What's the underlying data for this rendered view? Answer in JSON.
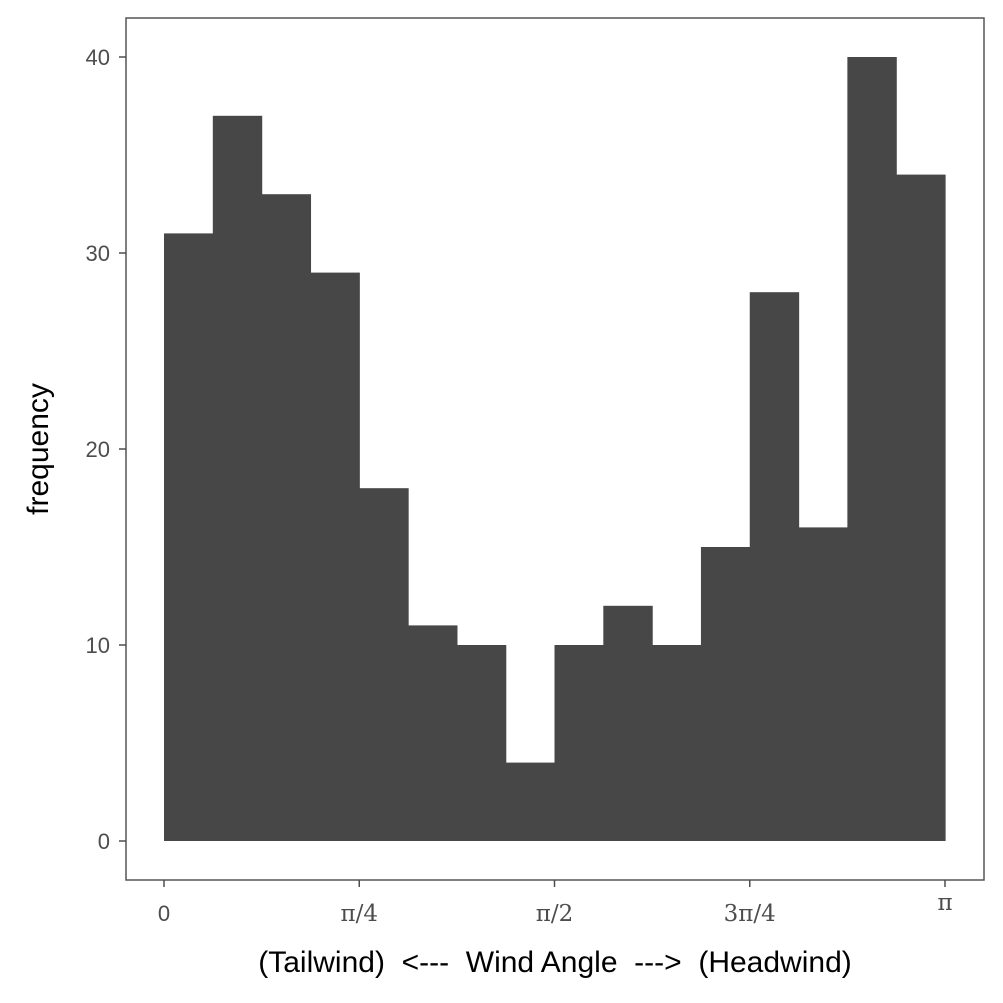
{
  "chart_data": {
    "type": "bar",
    "subtype": "histogram",
    "xlabel": "(Tailwind)  <---  Wind Angle  --->  (Headwind)",
    "ylabel": "frequency",
    "x_range": [
      0,
      3.14159
    ],
    "ylim": [
      0,
      42
    ],
    "bins": 16,
    "bin_edges": [
      0,
      0.19635,
      0.3927,
      0.58905,
      0.7854,
      0.98175,
      1.1781,
      1.37445,
      1.5708,
      1.76715,
      1.9635,
      2.15985,
      2.35619,
      2.55254,
      2.74889,
      2.94524,
      3.14159
    ],
    "values": [
      31,
      37,
      33,
      29,
      18,
      11,
      10,
      4,
      10,
      12,
      10,
      15,
      28,
      16,
      40,
      34
    ],
    "x_ticks": [
      {
        "value": 0,
        "label": "0"
      },
      {
        "value": 0.7854,
        "label": "π/4"
      },
      {
        "value": 1.5708,
        "label": "π/2"
      },
      {
        "value": 2.35619,
        "label": "3π/4"
      },
      {
        "value": 3.14159,
        "label": "π"
      }
    ],
    "y_ticks": [
      {
        "value": 0,
        "label": "0"
      },
      {
        "value": 10,
        "label": "10"
      },
      {
        "value": 20,
        "label": "20"
      },
      {
        "value": 30,
        "label": "30"
      },
      {
        "value": 40,
        "label": "40"
      }
    ],
    "grid": false,
    "legend": "none",
    "bar_color": "#474747",
    "panel_border_color": "#555555",
    "tick_color": "#4d4d4d"
  }
}
